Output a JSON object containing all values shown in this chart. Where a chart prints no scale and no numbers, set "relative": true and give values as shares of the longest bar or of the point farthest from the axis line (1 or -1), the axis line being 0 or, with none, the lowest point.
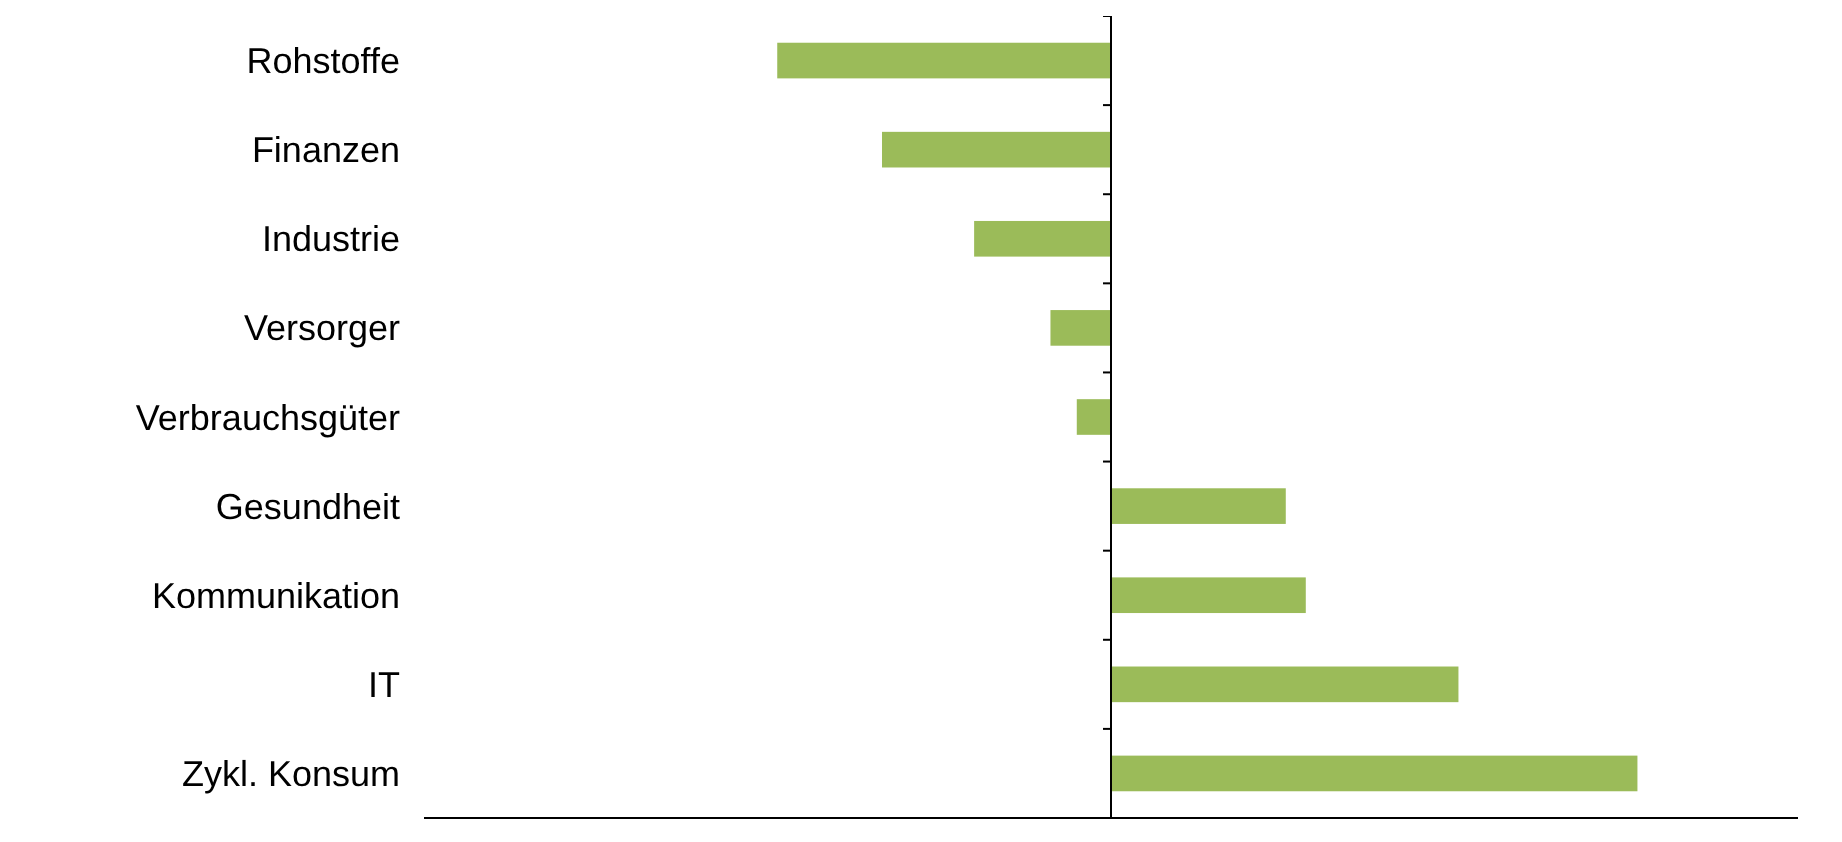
{
  "chart_data": {
    "type": "bar",
    "orientation": "horizontal",
    "relative": true,
    "categories": [
      "Rohstoffe",
      "Finanzen",
      "Industrie",
      "Versorger",
      "Verbrauchsgüter",
      "Gesundheit",
      "Kommunikation",
      "IT",
      "Zykl. Konsum"
    ],
    "values": [
      -0.634,
      -0.435,
      -0.26,
      -0.115,
      -0.065,
      0.332,
      0.37,
      0.66,
      1
    ],
    "color": "#9bbb59"
  }
}
